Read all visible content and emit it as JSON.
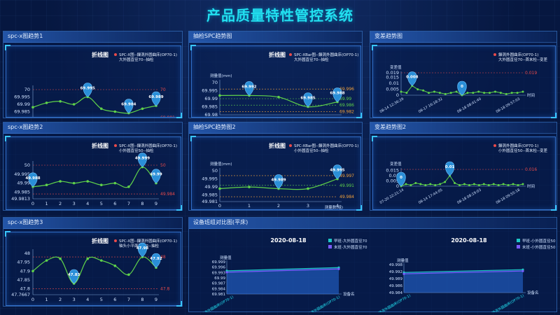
{
  "page_title": "产品质量特性管控系统",
  "colors": {
    "line": "#5fd24a",
    "point": "#5fd24a",
    "limit": "#e84a4a",
    "pin": "#2a8fd8",
    "accent": "#22e0f0",
    "orange": "#f2a13a"
  },
  "panels": [
    {
      "id": "spc1",
      "title": "spc-x图趋势1",
      "chart_title": "折线图",
      "legend": [
        "SPC-X图--鏁涡外圆曲床(OP70-1)",
        "大外圆直径70--抽检"
      ],
      "y_ticks": [
        "70",
        "69.995",
        "69.99",
        "69.985",
        "69.98"
      ],
      "x_ticks": [
        "0",
        "1",
        "2",
        "3",
        "4",
        "5",
        "6",
        "7",
        "8",
        "9"
      ],
      "limit_labels": [
        "70",
        "69.981"
      ],
      "pins": [
        "69.995",
        "69.984",
        "69.989"
      ]
    },
    {
      "id": "spc2",
      "title": "spc-x图趋势2",
      "chart_title": "折线图",
      "legend": [
        "SPC-X图--鏁涡外圆曲床(OP70-1)",
        "小外圆直径50--抽检"
      ],
      "y_ticks": [
        "50",
        "49.995",
        "49.99",
        "49.985",
        "49.9813"
      ],
      "x_ticks": [
        "0",
        "1",
        "2",
        "3",
        "4",
        "5",
        "6",
        "7",
        "8",
        "9"
      ],
      "limit_labels": [
        "50",
        "49.984"
      ],
      "pins": [
        "49.988",
        "49.999",
        "49.99"
      ]
    },
    {
      "id": "spc3",
      "title": "spc-x图趋势3",
      "chart_title": "折线图",
      "legend": [
        "SPC-X图--鏁涡外圆曲床(OP70-1)",
        "轴头小平面厚度2--抽检"
      ],
      "y_ticks": [
        "48",
        "47.95",
        "47.9",
        "47.85",
        "47.8",
        "47.7667"
      ],
      "x_ticks": [
        "0",
        "1",
        "2",
        "3",
        "4",
        "5",
        "6",
        "7",
        "8",
        "9"
      ],
      "limit_labels": [
        "48",
        "47.8"
      ],
      "pins": [
        "47.83",
        "47.98",
        "47.92"
      ]
    },
    {
      "id": "chk1",
      "title": "抽检SPC趋势图",
      "chart_title": "折线图",
      "legend": [
        "SPC-XBar图--鏁涡外圆曲床(OP70-1)",
        "大外圆直径70--抽检"
      ],
      "y_unit": "测量值(mm)",
      "x_unit": "测量数(组)",
      "y_ticks": [
        "70",
        "69.995",
        "69.99",
        "69.985",
        "69.98"
      ],
      "x_ticks": [
        "0",
        "1",
        "2",
        "3",
        "4"
      ],
      "limit_labels": [
        "69.996",
        "69.99",
        "69.986",
        "69.982"
      ],
      "pins": [
        "69.992",
        "69.985",
        "69.988"
      ]
    },
    {
      "id": "chk2",
      "title": "抽检SPC趋势图2",
      "chart_title": "折线图",
      "legend": [
        "SPC-XBar图--鏁涡外圆曲床(OP70-1)",
        "小外圆直径50--抽检"
      ],
      "y_unit": "测量值(mm)",
      "x_unit": "测量数(组)",
      "y_ticks": [
        "50",
        "49.995",
        "49.99",
        "49.985",
        "49.981"
      ],
      "x_ticks": [
        "0",
        "1",
        "2",
        "3",
        "4"
      ],
      "limit_labels": [
        "49.997",
        "49.991",
        "49.984"
      ],
      "pins": [
        "49.989",
        "49.995"
      ]
    },
    {
      "id": "var1",
      "title": "变差趋势图",
      "legend": [
        "鏁涡外圆曲床(OP70-1)",
        "大外圆直径70--首末检--变差"
      ],
      "y_unit": "变差值",
      "x_unit": "时间",
      "y_ticks": [
        "0.019",
        "0.015",
        "0.01",
        "0.005",
        "0"
      ],
      "x_ticks": [
        "08-14 12:36:29",
        "08-17 16:18:32",
        "08-18 08:41:40",
        "08-18 09:57:03"
      ],
      "limit_labels": [
        "0.019"
      ],
      "pins": [
        "0.008",
        "0"
      ]
    },
    {
      "id": "var2",
      "title": "变差趋势图2",
      "legend": [
        "鏁涡外圆曲床(OP70-1)",
        "小外圆直径50--首末检--变差"
      ],
      "y_unit": "变差值",
      "x_unit": "时间",
      "y_ticks": [
        "0.015",
        "0.01",
        "0.005",
        "0"
      ],
      "x_ticks": [
        "07-20 22:21:14",
        "08-14 17:44:05",
        "08-18 08:19:03",
        "08-18 09:55:18"
      ],
      "limit_labels": [
        "0.016"
      ],
      "pins": [
        "0",
        "0.01"
      ]
    }
  ],
  "device_panel": {
    "title": "设备班组对比图(平床)",
    "left": {
      "date": "2020-08-18",
      "y_unit": "测量值",
      "x_unit": "设备名",
      "y_ticks": [
        "69.999",
        "69.996",
        "69.993",
        "69.99",
        "69.987",
        "69.984",
        "69.981"
      ],
      "x_ticks": [
        "鏁涡外圆曲床(OP70-1)",
        "鏁涡外圆曲床(OP70-1)"
      ],
      "legend": [
        "早班-大外圆直径70",
        "末班-大外圆直径70"
      ]
    },
    "right": {
      "date": "2020-08-18",
      "y_unit": "测量值",
      "x_unit": "设备名",
      "y_ticks": [
        "49.998",
        "49.992",
        "49.989",
        "49.986",
        "49.984"
      ],
      "x_ticks": [
        "鏁涡外圆曲床(OP70-1)",
        "鏁涡外圆曲床(OP70-1)"
      ],
      "legend": [
        "早班-小外圆直径50",
        "末班-小外圆直径50"
      ]
    }
  },
  "chart_data": [
    {
      "type": "line",
      "id": "spc1",
      "x": [
        0,
        1,
        2,
        3,
        4,
        5,
        6,
        7,
        8,
        9
      ],
      "values": [
        69.988,
        69.991,
        69.992,
        69.99,
        69.995,
        69.987,
        69.985,
        69.984,
        69.987,
        69.989
      ],
      "ylim": [
        69.98,
        70
      ],
      "limits": [
        70,
        69.981
      ]
    },
    {
      "type": "line",
      "id": "spc2",
      "x": [
        0,
        1,
        2,
        3,
        4,
        5,
        6,
        7,
        8,
        9
      ],
      "values": [
        49.988,
        49.989,
        49.991,
        49.99,
        49.991,
        49.989,
        49.99,
        49.988,
        49.999,
        49.99
      ],
      "ylim": [
        49.9813,
        50
      ],
      "limits": [
        50,
        49.984
      ]
    },
    {
      "type": "line",
      "id": "spc3",
      "x": [
        0,
        1,
        2,
        3,
        4,
        5,
        6,
        7,
        8,
        9
      ],
      "values": [
        47.9,
        47.96,
        47.97,
        47.83,
        47.97,
        47.96,
        47.93,
        47.88,
        47.98,
        47.92
      ],
      "ylim": [
        47.7667,
        48
      ],
      "limits": [
        47.98,
        47.8
      ]
    },
    {
      "type": "line",
      "id": "chk1",
      "x": [
        0,
        1,
        2,
        3,
        4
      ],
      "values": [
        69.992,
        69.992,
        69.991,
        69.985,
        69.988
      ],
      "ylim": [
        69.98,
        70
      ]
    },
    {
      "type": "line",
      "id": "chk2",
      "x": [
        0,
        1,
        2,
        3,
        4
      ],
      "values": [
        49.989,
        49.99,
        49.989,
        49.989,
        49.995
      ],
      "ylim": [
        49.981,
        50
      ]
    },
    {
      "type": "line",
      "id": "var1",
      "values": [
        0.003,
        0.002,
        0.008,
        0.005,
        0.004,
        0.002,
        0.003,
        0.002,
        0.001,
        0.002,
        0.003,
        0,
        0.002,
        0.002,
        0.003,
        0.002,
        0.002,
        0.003,
        0.002,
        0.001,
        0.002,
        0.002,
        0.003
      ],
      "ylim": [
        0,
        0.019
      ]
    },
    {
      "type": "line",
      "id": "var2",
      "values": [
        0,
        0.002,
        0.001,
        0.003,
        0.002,
        0.001,
        0.002,
        0.001,
        0.002,
        0.004,
        0.01,
        0.003,
        0.001,
        0.002,
        0.001,
        0.002,
        0.001,
        0.002,
        0.001,
        0.002,
        0.001,
        0.002,
        0.001,
        0.002,
        0.001,
        0.002
      ],
      "ylim": [
        0,
        0.016
      ]
    },
    {
      "type": "area",
      "id": "dev-left",
      "series": [
        {
          "name": "早班-大外圆直径70",
          "values": [
            69.992,
            69.993
          ]
        },
        {
          "name": "末班-大外圆直径70",
          "values": [
            69.991,
            69.992
          ]
        }
      ]
    },
    {
      "type": "area",
      "id": "dev-right",
      "series": [
        {
          "name": "早班-小外圆直径50",
          "values": [
            49.988,
            49.986
          ]
        },
        {
          "name": "末班-小外圆直径50",
          "values": [
            49.987,
            49.985
          ]
        }
      ]
    }
  ]
}
